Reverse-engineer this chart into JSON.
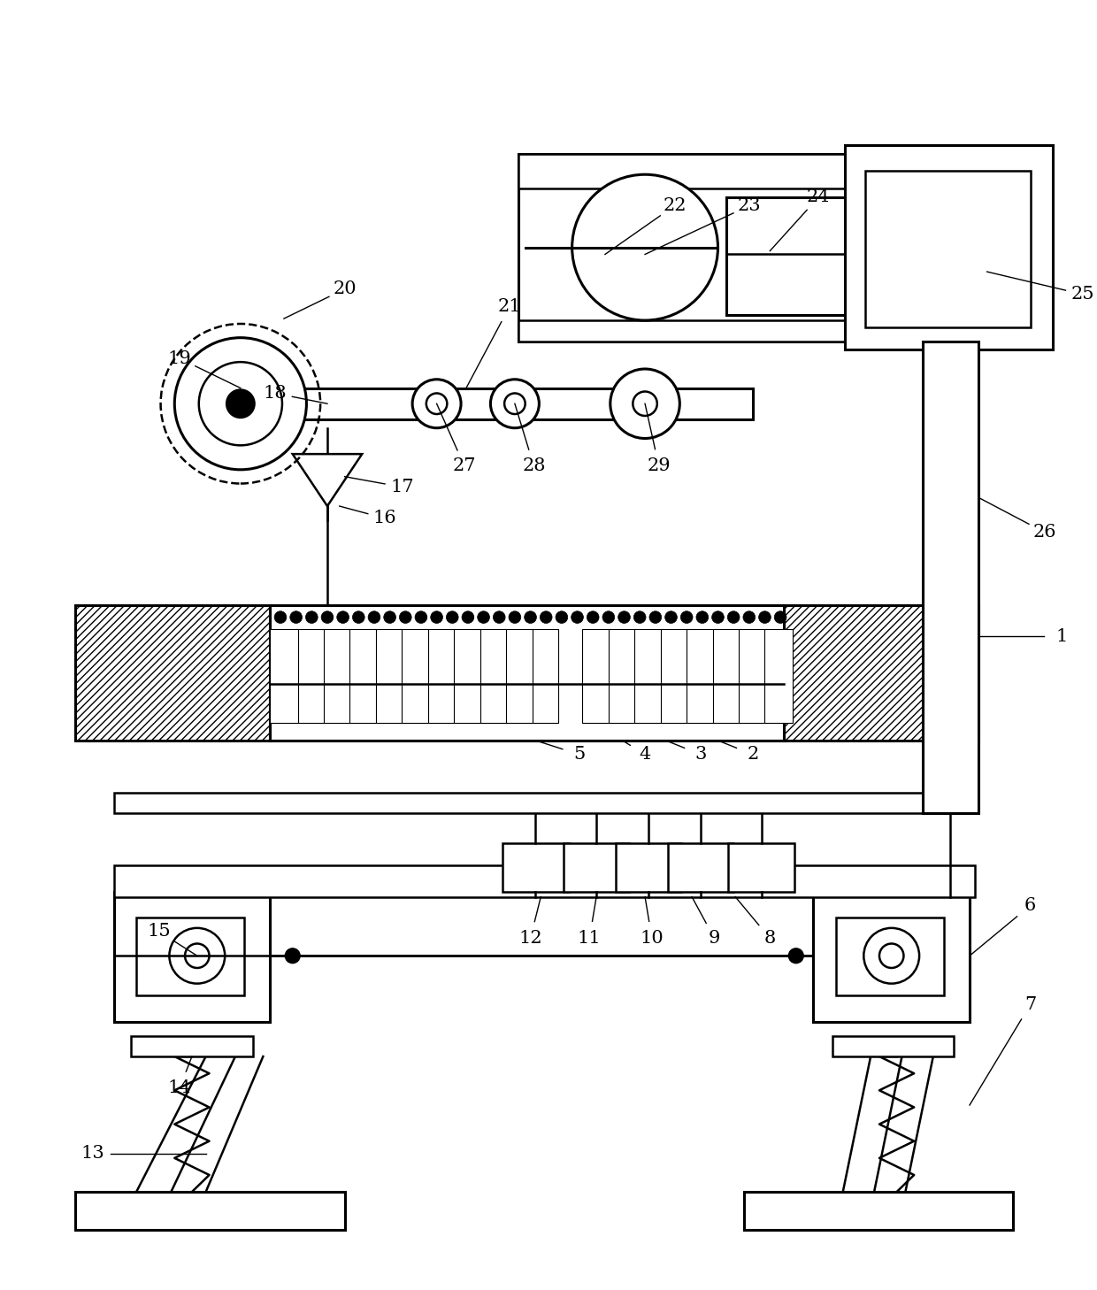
{
  "bg_color": "#ffffff",
  "line_color": "#000000",
  "fig_width": 12.4,
  "fig_height": 14.58,
  "lw": 1.8,
  "lw2": 2.2,
  "lw3": 3.0
}
